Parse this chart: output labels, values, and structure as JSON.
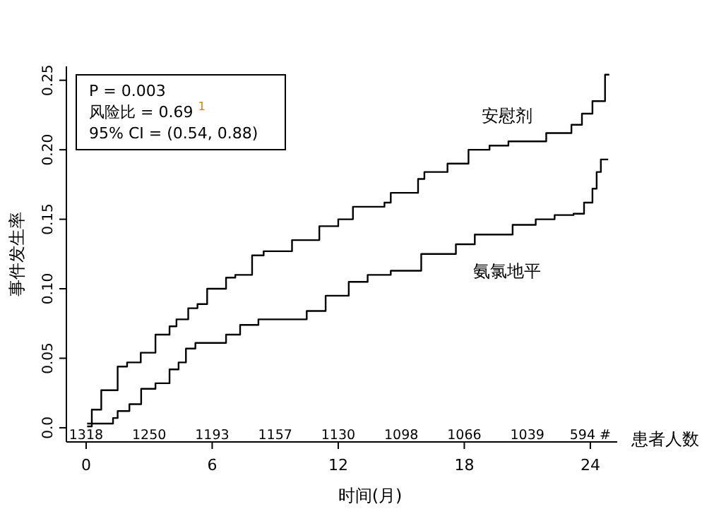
{
  "chart_data": {
    "type": "step",
    "xlabel": "时间(月)",
    "ylabel": "事件发生率",
    "xlim": [
      -0.94,
      25.28
    ],
    "ylim": [
      -0.0102,
      0.26
    ],
    "xticks": [
      0,
      6,
      12,
      18,
      24
    ],
    "yticks": [
      {
        "value": 0,
        "label": "0.0"
      },
      0.05,
      {
        "value": 0.1,
        "label": "0.10"
      },
      0.15,
      {
        "value": 0.2,
        "label": "0.20"
      },
      0.25
    ],
    "series": [
      {
        "name": "安慰剂",
        "color": "#000000",
        "x": [
          0.05,
          0.27,
          0.72,
          1.5,
          1.95,
          2.6,
          3.3,
          3.97,
          4.3,
          4.86,
          5.3,
          5.76,
          6.66,
          7.1,
          7.9,
          8.45,
          9.8,
          11.1,
          12.0,
          12.7,
          14.2,
          14.5,
          15.8,
          16.1,
          17.2,
          18.2,
          19.2,
          20.1,
          21.9,
          22.9,
          23.1,
          23.6,
          24.1,
          24.6,
          24.7,
          24.9
        ],
        "values": [
          0.001,
          0.013,
          0.027,
          0.044,
          0.047,
          0.054,
          0.067,
          0.073,
          0.078,
          0.086,
          0.089,
          0.1,
          0.108,
          0.11,
          0.124,
          0.127,
          0.135,
          0.145,
          0.15,
          0.159,
          0.162,
          0.169,
          0.179,
          0.184,
          0.19,
          0.2,
          0.203,
          0.206,
          0.212,
          0.212,
          0.218,
          0.226,
          0.235,
          0.235,
          0.254,
          0.254
        ]
      },
      {
        "name": "氨氯地平",
        "color": "#000000",
        "x": [
          0.05,
          0.6,
          1.28,
          1.5,
          2.06,
          2.62,
          3.3,
          3.97,
          4.4,
          4.75,
          5.2,
          6.0,
          6.66,
          7.33,
          8.2,
          9.35,
          10.5,
          11.4,
          12.5,
          13.4,
          14.5,
          15.95,
          17.6,
          18.5,
          20.3,
          21.4,
          22.3,
          23.2,
          23.7,
          24.1,
          24.3,
          24.5,
          24.85
        ],
        "values": [
          0.003,
          0.003,
          0.007,
          0.012,
          0.017,
          0.028,
          0.032,
          0.042,
          0.047,
          0.057,
          0.061,
          0.061,
          0.067,
          0.074,
          0.078,
          0.078,
          0.084,
          0.095,
          0.105,
          0.11,
          0.113,
          0.125,
          0.132,
          0.139,
          0.146,
          0.15,
          0.153,
          0.154,
          0.162,
          0.172,
          0.184,
          0.193,
          0.193
        ]
      }
    ],
    "annotations": [
      "P = 0.003",
      "风险比 = 0.69 $^{1}$",
      "95% CI = (0.54, 0.88)",
      "1318",
      "1250",
      "1193",
      "1157",
      "1130",
      "1098",
      "1066",
      "1039",
      "594 #",
      "患者人数"
    ]
  }
}
